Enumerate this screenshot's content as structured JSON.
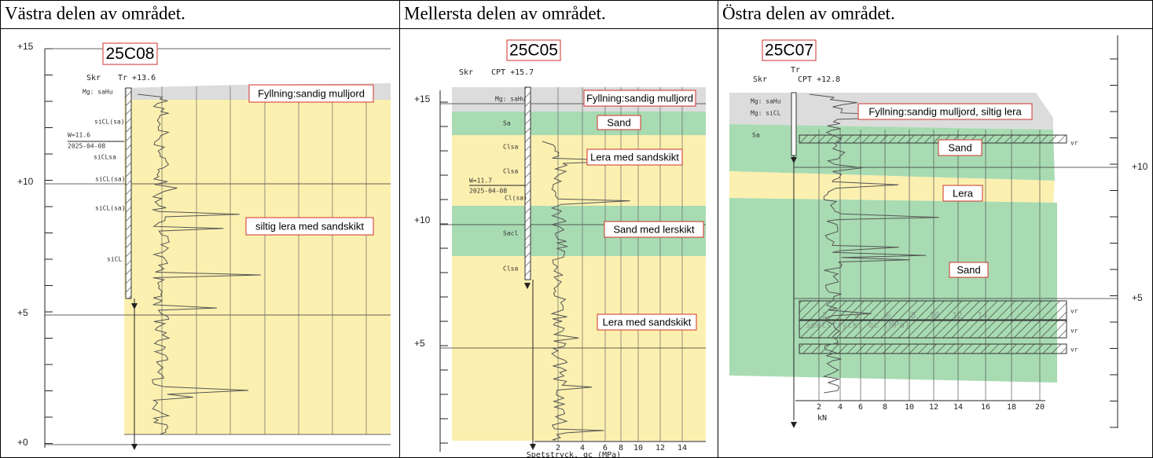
{
  "header": [
    "Västra delen av området.",
    "Mellersta delen av området.",
    "Östra delen av området."
  ],
  "panels": [
    {
      "borehole": "25C08",
      "method_labels": [
        "Skr",
        "Tr +13.6"
      ],
      "elevations": [
        "+15",
        "+10",
        "+5",
        "+0"
      ],
      "soil_labels": [
        "Mg: saHu",
        "siCL(sa)",
        "W=11.6",
        "2025-04-08",
        "siCLsa",
        "siCL(sa)",
        "siCL(sa)",
        "siCL"
      ],
      "annotations": [
        "Fyllning:sandig mulljord",
        "siltig lera med sandskikt"
      ]
    },
    {
      "borehole": "25C05",
      "method_labels": [
        "Skr",
        "CPT +15.7"
      ],
      "elevations": [
        "+15",
        "+10",
        "+5"
      ],
      "soil_labels": [
        "Mg: saHu",
        "Sa",
        "Clsa",
        "Clsa",
        "W=11.7",
        "2025-04-08",
        "Cl(sa)",
        "Sacl",
        "Clsa"
      ],
      "annotations": [
        "Fyllning:sandig mulljord",
        "Sand",
        "Lera med sandskikt",
        "Sand med lerskikt",
        "Lera med sandskikt"
      ],
      "axis_ticks": [
        "2",
        "4",
        "6",
        "8",
        "10",
        "12",
        "14"
      ],
      "axis_title": "Spetstryck, qc (MPa)"
    },
    {
      "borehole": "25C07",
      "method_labels": [
        "Tr",
        "Skr",
        "CPT +12.8"
      ],
      "elevations": [
        "+10",
        "+5"
      ],
      "soil_labels": [
        "Mg: saHu",
        "Mg: siCL",
        "Sa"
      ],
      "annotations": [
        "Fyllning:sandig mulljord, siltig lera",
        "Sand",
        "Lera",
        "Sand"
      ],
      "vr_labels": [
        "vr",
        "vr",
        "vr",
        "vr"
      ],
      "faded_ticks": [
        "2",
        "4",
        "6",
        "8",
        "10",
        "12",
        "14"
      ],
      "faded_axis_title": "Spetstryck, qc (MPa)",
      "axis_ticks": [
        "2",
        "4",
        "6",
        "8",
        "10",
        "12",
        "14",
        "16",
        "18",
        "20"
      ],
      "axis_unit": "kN"
    }
  ]
}
